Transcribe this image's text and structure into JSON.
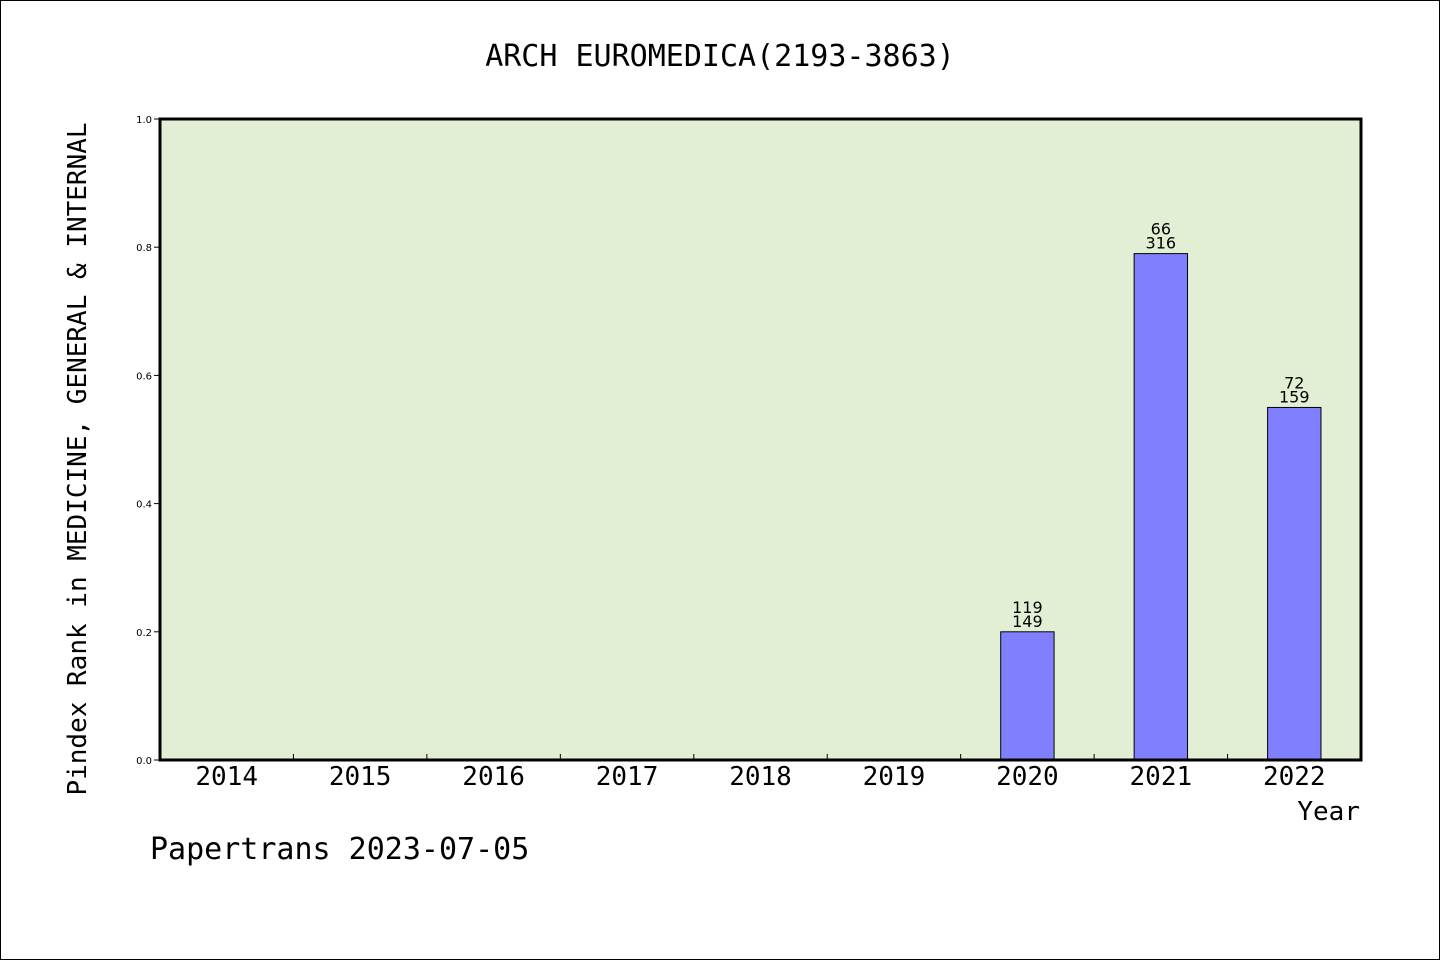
{
  "footer": "Papertrans 2023-07-05",
  "chart_data": {
    "type": "bar",
    "title": "ARCH EUROMEDICA(2193-3863)",
    "xlabel": "Year",
    "ylabel": "Pindex Rank in MEDICINE, GENERAL & INTERNAL",
    "categories": [
      "2014",
      "2015",
      "2016",
      "2017",
      "2018",
      "2019",
      "2020",
      "2021",
      "2022"
    ],
    "values": [
      null,
      null,
      null,
      null,
      null,
      null,
      0.2,
      0.79,
      0.55
    ],
    "bar_labels_top": [
      null,
      null,
      null,
      null,
      null,
      null,
      "119",
      "66",
      "72"
    ],
    "bar_labels_bottom": [
      null,
      null,
      null,
      null,
      null,
      null,
      "149",
      "316",
      "159"
    ],
    "ylim": [
      0,
      1.0
    ],
    "yticks": [
      "0.0",
      "0.2",
      "0.4",
      "0.6",
      "0.8",
      "1.0"
    ],
    "grid": false,
    "colors": {
      "plot_background": "#e2efd5",
      "bar_fill": "#8080ff",
      "bar_stroke": "#000000"
    }
  }
}
